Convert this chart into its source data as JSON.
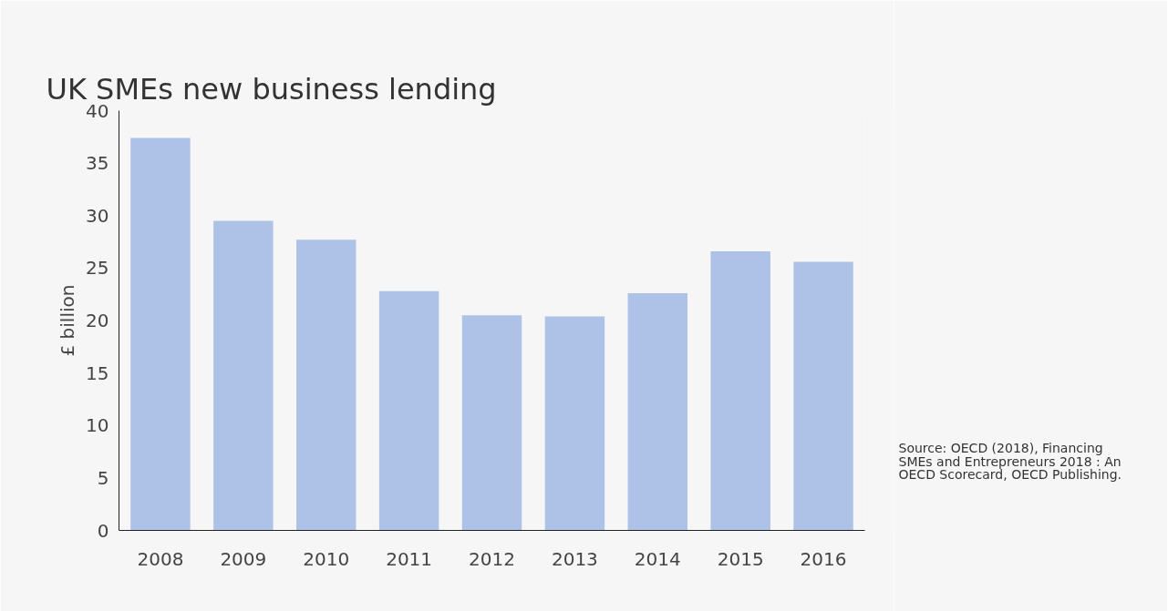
{
  "chart_data": {
    "type": "bar",
    "title": "UK SMEs new business lending",
    "ylabel": "£ billion",
    "categories": [
      "2008",
      "2009",
      "2010",
      "2011",
      "2012",
      "2013",
      "2014",
      "2015",
      "2016"
    ],
    "values": [
      37.4,
      29.5,
      27.7,
      22.8,
      20.5,
      20.4,
      22.6,
      26.6,
      25.6
    ],
    "color": "#aec2e8",
    "ylim": [
      0,
      40
    ],
    "yticks": [
      0,
      5,
      10,
      15,
      20,
      25,
      30,
      35,
      40
    ],
    "grid": false,
    "annotations": [
      "Source: OECD (2018), Financing SMEs and Entrepreneurs 2018 : An OECD Scorecard, OECD Publishing."
    ]
  }
}
